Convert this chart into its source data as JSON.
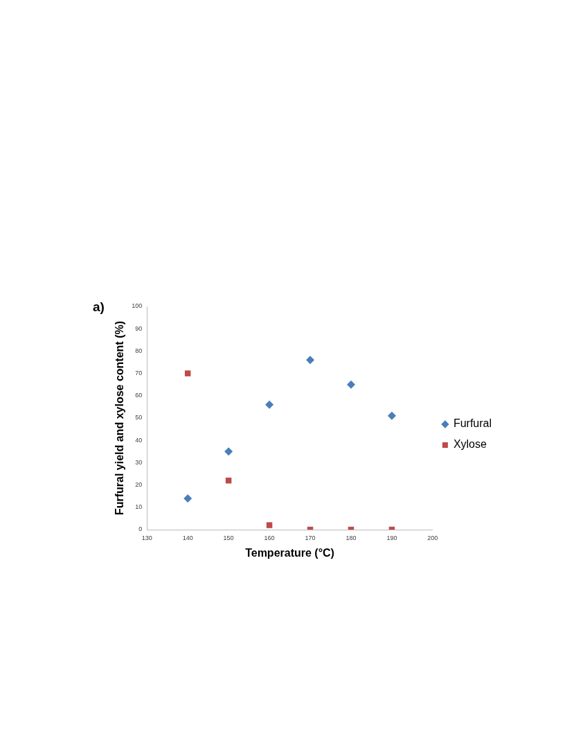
{
  "chart_data": {
    "type": "scatter",
    "xlabel": "Temperature (°C)",
    "ylabel": "Furfural yield and xylose content (%)",
    "annotations": [
      "a)"
    ],
    "x": [
      140,
      150,
      160,
      170,
      180,
      190
    ],
    "series": [
      {
        "name": "Furfural",
        "color": "#4a7ebb",
        "marker": "diamond",
        "values": [
          14,
          35,
          56,
          76,
          65,
          51
        ]
      },
      {
        "name": "Xylose",
        "color": "#be4b48",
        "marker": "square",
        "values": [
          70,
          22,
          2,
          0,
          0,
          0
        ]
      }
    ],
    "xlim": [
      130,
      200
    ],
    "xticks": [
      130,
      140,
      150,
      160,
      170,
      180,
      190,
      200
    ],
    "ylim": [
      0,
      100
    ],
    "yticks": [
      0,
      10,
      20,
      30,
      40,
      50,
      60,
      70,
      80,
      90,
      100
    ],
    "grid": false,
    "legend": "right"
  }
}
